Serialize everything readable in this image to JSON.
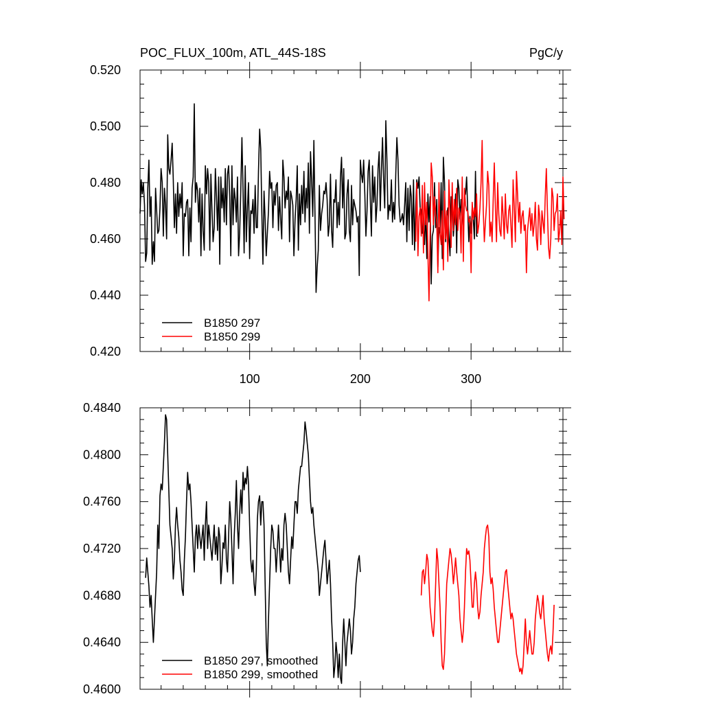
{
  "colors": {
    "black": "#000000",
    "red": "#ff0000"
  },
  "chart_data": [
    {
      "type": "line",
      "title": "POC_FLUX_100m, ATL_44S-18S",
      "units": "PgC/y",
      "xlim": [
        1,
        383
      ],
      "ylim": [
        0.42,
        0.52
      ],
      "xticks": [
        100,
        200,
        300
      ],
      "xtick_labels": [
        "100",
        "200",
        "300"
      ],
      "yticks": [
        0.42,
        0.44,
        0.46,
        0.48,
        0.5,
        0.52
      ],
      "ytick_labels": [
        "0.420",
        "0.440",
        "0.460",
        "0.480",
        "0.500",
        "0.520"
      ],
      "show_xtick_labels": true,
      "legend_position": "bottom-left",
      "series": [
        {
          "name": "B1850 297",
          "color": "#000000",
          "x0": 1,
          "values": [
            0.469,
            0.481,
            0.476,
            0.48,
            0.472,
            0.452,
            0.455,
            0.478,
            0.488,
            0.468,
            0.475,
            0.451,
            0.459,
            0.452,
            0.478,
            0.47,
            0.462,
            0.463,
            0.471,
            0.485,
            0.48,
            0.461,
            0.478,
            0.472,
            0.46,
            0.497,
            0.485,
            0.483,
            0.488,
            0.494,
            0.481,
            0.464,
            0.476,
            0.462,
            0.48,
            0.468,
            0.476,
            0.471,
            0.48,
            0.454,
            0.469,
            0.468,
            0.473,
            0.474,
            0.454,
            0.471,
            0.459,
            0.478,
            0.482,
            0.508,
            0.473,
            0.48,
            0.477,
            0.466,
            0.478,
            0.454,
            0.476,
            0.463,
            0.456,
            0.486,
            0.476,
            0.485,
            0.48,
            0.456,
            0.483,
            0.47,
            0.459,
            0.464,
            0.485,
            0.475,
            0.463,
            0.482,
            0.451,
            0.482,
            0.471,
            0.478,
            0.466,
            0.485,
            0.465,
            0.483,
            0.486,
            0.475,
            0.454,
            0.486,
            0.465,
            0.478,
            0.474,
            0.466,
            0.482,
            0.454,
            0.462,
            0.477,
            0.496,
            0.478,
            0.455,
            0.486,
            0.459,
            0.471,
            0.48,
            0.453,
            0.47,
            0.469,
            0.474,
            0.462,
            0.479,
            0.464,
            0.464,
            0.484,
            0.499,
            0.492,
            0.469,
            0.451,
            0.477,
            0.467,
            0.454,
            0.462,
            0.47,
            0.484,
            0.478,
            0.48,
            0.464,
            0.477,
            0.472,
            0.479,
            0.48,
            0.463,
            0.475,
            0.467,
            0.46,
            0.488,
            0.482,
            0.471,
            0.477,
            0.474,
            0.482,
            0.459,
            0.477,
            0.475,
            0.472,
            0.454,
            0.467,
            0.474,
            0.486,
            0.456,
            0.476,
            0.465,
            0.479,
            0.469,
            0.484,
            0.466,
            0.478,
            0.471,
            0.487,
            0.462,
            0.491,
            0.481,
            0.468,
            0.495,
            0.469,
            0.441,
            0.45,
            0.456,
            0.479,
            0.463,
            0.469,
            0.472,
            0.477,
            0.476,
            0.48,
            0.474,
            0.461,
            0.465,
            0.483,
            0.463,
            0.457,
            0.474,
            0.473,
            0.481,
            0.464,
            0.473,
            0.465,
            0.482,
            0.489,
            0.471,
            0.485,
            0.46,
            0.462,
            0.476,
            0.481,
            0.463,
            0.459,
            0.479,
            0.465,
            0.474,
            0.472,
            0.47,
            0.466,
            0.468,
            0.447,
            0.488,
            0.483,
            0.48,
            0.488,
            0.476,
            0.461,
            0.47,
            0.484,
            0.488,
            0.474,
            0.461,
            0.486,
            0.473,
            0.482,
            0.466,
            0.472,
            0.485,
            0.491,
            0.47,
            0.484,
            0.496,
            0.481,
            0.471,
            0.502,
            0.488,
            0.467,
            0.472,
            0.47,
            0.481,
            0.466,
            0.473,
            0.467,
            0.483,
            0.496,
            0.488,
            0.472,
            0.466,
            0.467,
            0.469,
            0.465,
            0.472,
            0.48,
            0.459,
            0.478,
            0.463,
            0.479,
            0.475,
            0.458,
            0.481,
            0.456,
            0.471,
            0.481,
            0.478,
            0.482,
            0.471,
            0.47,
            0.462,
            0.465,
            0.458,
            0.47,
            0.453,
            0.476,
            0.466,
            0.475,
            0.444,
            0.461,
            0.463,
            0.48,
            0.464,
            0.474,
            0.45,
            0.464,
            0.462,
            0.48,
            0.453,
            0.489,
            0.48,
            0.459,
            0.468,
            0.471,
            0.461,
            0.454,
            0.475,
            0.473,
            0.461,
            0.467,
            0.476,
            0.455,
            0.481,
            0.478,
            0.467,
            0.474,
            0.469,
            0.462,
            0.475,
            0.476,
            0.482,
            0.47,
            0.459,
            0.468,
            0.462,
            0.471,
            0.467,
            0.46,
            0.484,
            0.461,
            0.461
          ]
        },
        {
          "name": "B1850 299",
          "color": "#ff0000",
          "x0": 250,
          "values": [
            0.459,
            0.48,
            0.454,
            0.468,
            0.471,
            0.461,
            0.479,
            0.455,
            0.48,
            0.465,
            0.473,
            0.455,
            0.438,
            0.462,
            0.487,
            0.482,
            0.465,
            0.475,
            0.469,
            0.466,
            0.448,
            0.48,
            0.462,
            0.458,
            0.47,
            0.449,
            0.477,
            0.46,
            0.47,
            0.452,
            0.481,
            0.47,
            0.457,
            0.48,
            0.463,
            0.474,
            0.465,
            0.478,
            0.463,
            0.471,
            0.469,
            0.455,
            0.482,
            0.452,
            0.478,
            0.472,
            0.47,
            0.47,
            0.466,
            0.467,
            0.448,
            0.473,
            0.467,
            0.471,
            0.468,
            0.476,
            0.462,
            0.465,
            0.471,
            0.48,
            0.495,
            0.47,
            0.459,
            0.466,
            0.472,
            0.484,
            0.479,
            0.461,
            0.466,
            0.459,
            0.474,
            0.487,
            0.471,
            0.459,
            0.48,
            0.469,
            0.463,
            0.461,
            0.475,
            0.468,
            0.46,
            0.476,
            0.465,
            0.462,
            0.47,
            0.472,
            0.465,
            0.457,
            0.481,
            0.472,
            0.459,
            0.484,
            0.476,
            0.466,
            0.473,
            0.462,
            0.468,
            0.47,
            0.463,
            0.465,
            0.448,
            0.463,
            0.467,
            0.471,
            0.463,
            0.469,
            0.461,
            0.465,
            0.473,
            0.46,
            0.456,
            0.472,
            0.468,
            0.458,
            0.47,
            0.466,
            0.462,
            0.475,
            0.485,
            0.47,
            0.457,
            0.453,
            0.46,
            0.478,
            0.475,
            0.463,
            0.469,
            0.47,
            0.476,
            0.459,
            0.463,
            0.47,
            0.458,
            0.482,
            0.467
          ]
        }
      ]
    },
    {
      "type": "line",
      "title": "",
      "xlim": [
        1,
        383
      ],
      "ylim": [
        0.46,
        0.484
      ],
      "xticks": [
        100,
        200,
        300
      ],
      "xtick_labels": [],
      "yticks": [
        0.46,
        0.464,
        0.468,
        0.472,
        0.476,
        0.48,
        0.484
      ],
      "ytick_labels": [
        "0.4600",
        "0.4640",
        "0.4680",
        "0.4720",
        "0.4760",
        "0.4800",
        "0.4840"
      ],
      "show_xtick_labels": false,
      "legend_position": "bottom-left",
      "series": [
        {
          "name": "B1850 297, smoothed",
          "color": "#000000",
          "x0": 6,
          "values": [
            0.4695,
            0.4712,
            0.47,
            0.4688,
            0.467,
            0.468,
            0.466,
            0.464,
            0.466,
            0.468,
            0.47,
            0.474,
            0.472,
            0.4765,
            0.4775,
            0.477,
            0.479,
            0.481,
            0.4834,
            0.483,
            0.48,
            0.477,
            0.474,
            0.473,
            0.472,
            0.4694,
            0.471,
            0.474,
            0.4755,
            0.474,
            0.473,
            0.471,
            0.47,
            0.4685,
            0.468,
            0.471,
            0.473,
            0.476,
            0.4785,
            0.477,
            0.4775,
            0.476,
            0.474,
            0.472,
            0.47,
            0.473,
            0.474,
            0.472,
            0.474,
            0.473,
            0.472,
            0.473,
            0.474,
            0.471,
            0.474,
            0.476,
            0.472,
            0.474,
            0.473,
            0.472,
            0.471,
            0.4725,
            0.474,
            0.4715,
            0.473,
            0.471,
            0.4738,
            0.473,
            0.469,
            0.4705,
            0.4725,
            0.472,
            0.474,
            0.471,
            0.47,
            0.473,
            0.476,
            0.4745,
            0.472,
            0.469,
            0.473,
            0.475,
            0.4778,
            0.474,
            0.472,
            0.475,
            0.477,
            0.475,
            0.4785,
            0.477,
            0.478,
            0.4775,
            0.479,
            0.4775,
            0.474,
            0.471,
            0.47,
            0.471,
            0.469,
            0.468,
            0.47,
            0.4745,
            0.476,
            0.4765,
            0.474,
            0.476,
            0.476,
            0.474,
            0.469,
            0.464,
            0.462,
            0.466,
            0.469,
            0.472,
            0.474,
            0.4735,
            0.472,
            0.472,
            0.47,
            0.472,
            0.474,
            0.472,
            0.47,
            0.472,
            0.471,
            0.474,
            0.475,
            0.474,
            0.472,
            0.47,
            0.469,
            0.471,
            0.473,
            0.472,
            0.474,
            0.476,
            0.476,
            0.475,
            0.477,
            0.478,
            0.479,
            0.479,
            0.48,
            0.481,
            0.4828,
            0.482,
            0.481,
            0.48,
            0.478,
            0.476,
            0.475,
            0.4755,
            0.474,
            0.473,
            0.472,
            0.471,
            0.47,
            0.468,
            0.469,
            0.47,
            0.471,
            0.472,
            0.4727,
            0.471,
            0.469,
            0.47,
            0.471,
            0.469,
            0.466,
            0.464,
            0.461,
            0.462,
            0.464,
            0.463,
            0.461,
            0.463,
            0.461,
            0.4605,
            0.464,
            0.466,
            0.464,
            0.462,
            0.464,
            0.465,
            0.466,
            0.465,
            0.463,
            0.464,
            0.466,
            0.467,
            0.469,
            0.47,
            0.471,
            0.4714,
            0.47
          ]
        },
        {
          "name": "B1850 299, smoothed",
          "color": "#ff0000",
          "x0": 255,
          "values": [
            0.468,
            0.47,
            0.4702,
            0.469,
            0.47,
            0.4715,
            0.471,
            0.469,
            0.467,
            0.466,
            0.465,
            0.4645,
            0.466,
            0.469,
            0.472,
            0.471,
            0.469,
            0.467,
            0.464,
            0.462,
            0.4617,
            0.463,
            0.466,
            0.469,
            0.47,
            0.471,
            0.472,
            0.4715,
            0.4705,
            0.469,
            0.47,
            0.4712,
            0.47,
            0.469,
            0.468,
            0.466,
            0.465,
            0.464,
            0.465,
            0.467,
            0.47,
            0.472,
            0.4715,
            0.4718,
            0.471,
            0.469,
            0.467,
            0.467,
            0.469,
            0.47,
            0.469,
            0.467,
            0.466,
            0.4666,
            0.468,
            0.469,
            0.47,
            0.472,
            0.473,
            0.4738,
            0.474,
            0.473,
            0.47,
            0.469,
            0.4695,
            0.4685,
            0.467,
            0.466,
            0.465,
            0.464,
            0.464,
            0.465,
            0.466,
            0.467,
            0.468,
            0.469,
            0.47,
            0.4702,
            0.469,
            0.468,
            0.467,
            0.466,
            0.4665,
            0.466,
            0.465,
            0.464,
            0.463,
            0.4625,
            0.462,
            0.4615,
            0.4618,
            0.4613,
            0.462,
            0.464,
            0.466,
            0.464,
            0.463,
            0.464,
            0.465,
            0.464,
            0.463,
            0.463,
            0.464,
            0.466,
            0.467,
            0.468,
            0.4675,
            0.4665,
            0.466,
            0.467,
            0.468,
            0.466,
            0.465,
            0.464,
            0.463,
            0.4624,
            0.4633,
            0.4637,
            0.463,
            0.4648,
            0.4672
          ]
        }
      ]
    }
  ]
}
